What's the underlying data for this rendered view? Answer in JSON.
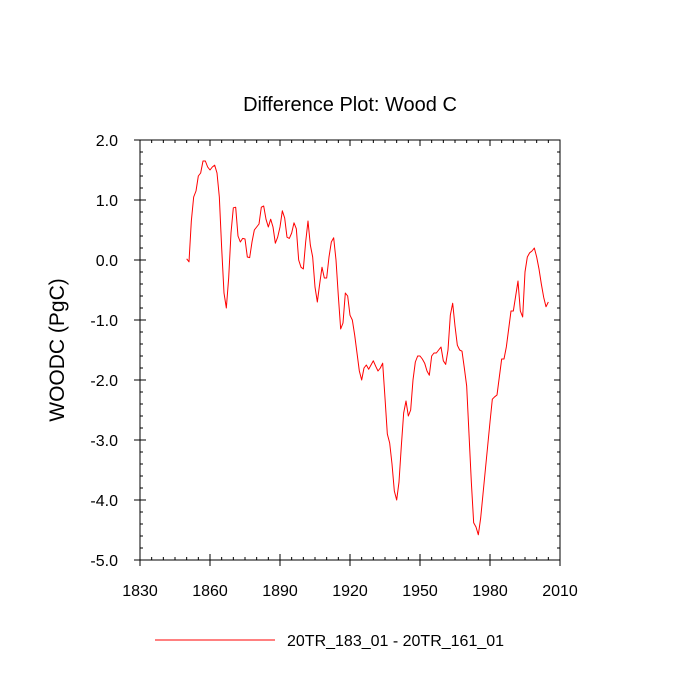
{
  "chart_data": {
    "type": "line",
    "title": "Difference Plot: Wood C",
    "xlabel": "",
    "ylabel": "WOODC  (PgC)",
    "xlim": [
      1830,
      2010
    ],
    "ylim": [
      -5.0,
      2.0
    ],
    "x_ticks": [
      1830,
      1860,
      1890,
      1920,
      1950,
      1980,
      2010
    ],
    "x_tick_labels": [
      "1830",
      "1860",
      "1890",
      "1920",
      "1950",
      "1980",
      "2010"
    ],
    "y_ticks": [
      -5.0,
      -4.0,
      -3.0,
      -2.0,
      -1.0,
      0.0,
      1.0,
      2.0
    ],
    "y_tick_labels": [
      "-5.0",
      "-4.0",
      "-3.0",
      "-2.0",
      "-1.0",
      "0.0",
      "1.0",
      "2.0"
    ],
    "grid": false,
    "legend_position": "bottom-center",
    "series": [
      {
        "name": "20TR_183_01 - 20TR_161_01",
        "color": "#ff0000",
        "x": [
          1850,
          1851,
          1852,
          1853,
          1854,
          1855,
          1856,
          1857,
          1858,
          1859,
          1860,
          1861,
          1862,
          1863,
          1864,
          1865,
          1866,
          1867,
          1868,
          1869,
          1870,
          1871,
          1872,
          1873,
          1874,
          1875,
          1876,
          1877,
          1878,
          1879,
          1880,
          1881,
          1882,
          1883,
          1884,
          1885,
          1886,
          1887,
          1888,
          1889,
          1890,
          1891,
          1892,
          1893,
          1894,
          1895,
          1896,
          1897,
          1898,
          1899,
          1900,
          1901,
          1902,
          1903,
          1904,
          1905,
          1906,
          1907,
          1908,
          1909,
          1910,
          1911,
          1912,
          1913,
          1914,
          1915,
          1916,
          1917,
          1918,
          1919,
          1920,
          1921,
          1922,
          1923,
          1924,
          1925,
          1926,
          1927,
          1928,
          1929,
          1930,
          1931,
          1932,
          1933,
          1934,
          1935,
          1936,
          1937,
          1938,
          1939,
          1940,
          1941,
          1942,
          1943,
          1944,
          1945,
          1946,
          1947,
          1948,
          1949,
          1950,
          1951,
          1952,
          1953,
          1954,
          1955,
          1956,
          1957,
          1958,
          1959,
          1960,
          1961,
          1962,
          1963,
          1964,
          1965,
          1966,
          1967,
          1968,
          1969,
          1970,
          1971,
          1972,
          1973,
          1974,
          1975,
          1976,
          1977,
          1978,
          1979,
          1980,
          1981,
          1982,
          1983,
          1984,
          1985,
          1986,
          1987,
          1988,
          1989,
          1990,
          1991,
          1992,
          1993,
          1994,
          1995,
          1996,
          1997,
          1998,
          1999,
          2000,
          2001,
          2002,
          2003,
          2004,
          2005
        ],
        "y": [
          0.02,
          -0.03,
          0.65,
          1.05,
          1.15,
          1.4,
          1.45,
          1.65,
          1.65,
          1.55,
          1.5,
          1.55,
          1.58,
          1.45,
          1.05,
          0.2,
          -0.55,
          -0.8,
          -0.3,
          0.45,
          0.87,
          0.88,
          0.4,
          0.3,
          0.36,
          0.35,
          0.05,
          0.04,
          0.3,
          0.5,
          0.55,
          0.6,
          0.88,
          0.9,
          0.68,
          0.55,
          0.68,
          0.55,
          0.28,
          0.38,
          0.55,
          0.82,
          0.7,
          0.38,
          0.36,
          0.45,
          0.62,
          0.52,
          0.0,
          -0.12,
          -0.15,
          0.3,
          0.65,
          0.25,
          0.05,
          -0.45,
          -0.7,
          -0.4,
          -0.12,
          -0.3,
          -0.3,
          0.05,
          0.3,
          0.37,
          0.0,
          -0.6,
          -1.15,
          -1.05,
          -0.55,
          -0.6,
          -0.92,
          -1.0,
          -1.25,
          -1.55,
          -1.85,
          -2.0,
          -1.8,
          -1.75,
          -1.82,
          -1.75,
          -1.68,
          -1.77,
          -1.85,
          -1.8,
          -1.72,
          -2.3,
          -2.9,
          -3.05,
          -3.4,
          -3.85,
          -4.0,
          -3.7,
          -3.1,
          -2.55,
          -2.35,
          -2.6,
          -2.5,
          -2.0,
          -1.7,
          -1.6,
          -1.6,
          -1.65,
          -1.72,
          -1.85,
          -1.92,
          -1.6,
          -1.55,
          -1.55,
          -1.5,
          -1.45,
          -1.68,
          -1.74,
          -1.5,
          -0.92,
          -0.72,
          -1.1,
          -1.42,
          -1.5,
          -1.52,
          -1.8,
          -2.1,
          -2.9,
          -3.7,
          -4.38,
          -4.45,
          -4.58,
          -4.3,
          -3.9,
          -3.5,
          -3.1,
          -2.7,
          -2.32,
          -2.28,
          -2.25,
          -1.95,
          -1.65,
          -1.65,
          -1.45,
          -1.15,
          -0.85,
          -0.85,
          -0.6,
          -0.35,
          -0.85,
          -0.95,
          -0.2,
          0.05,
          0.12,
          0.15,
          0.2,
          0.05,
          -0.15,
          -0.4,
          -0.62,
          -0.78,
          -0.7
        ]
      }
    ]
  }
}
